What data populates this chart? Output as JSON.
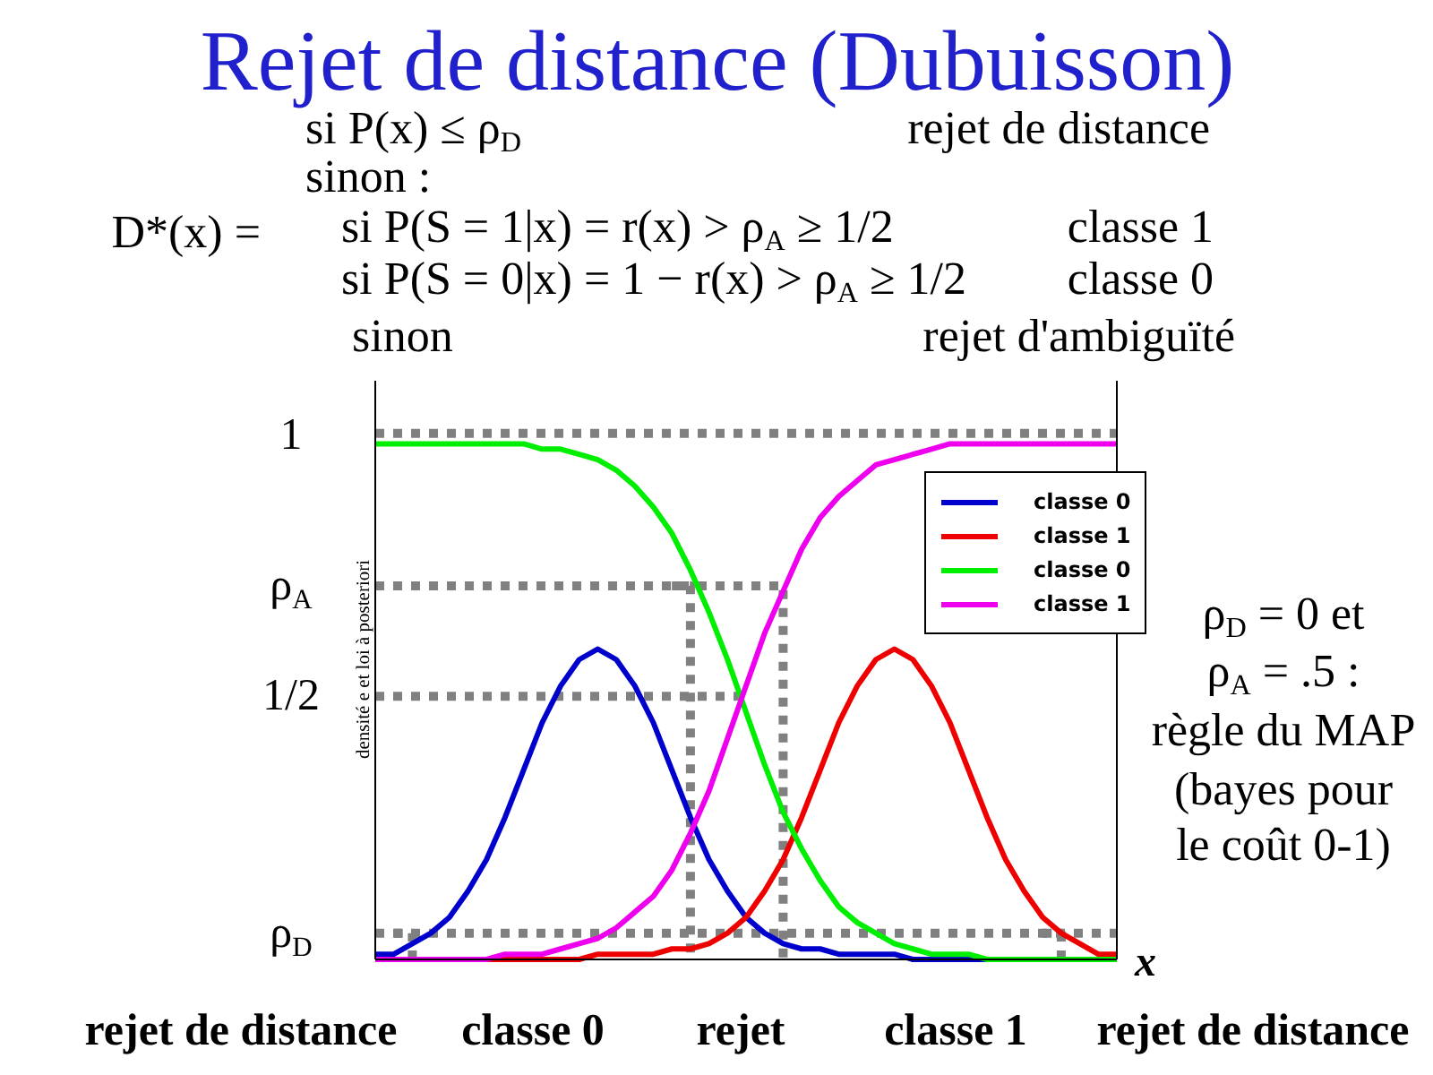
{
  "chart_data": {
    "type": "line",
    "title": "Rejet de distance (Dubuisson)",
    "xlabel": "x",
    "ylabel": "densité e et loi à posteriori",
    "categories": [
      null,
      null,
      null,
      null,
      null,
      null,
      null,
      null,
      null,
      null,
      null,
      null,
      null,
      null,
      null,
      null,
      null,
      null,
      null,
      null,
      null,
      null,
      null,
      null,
      null,
      null,
      null,
      null,
      null,
      null,
      null,
      null,
      null,
      null,
      null,
      null,
      null,
      null,
      null,
      null,
      null
    ],
    "ref_lines": [
      {
        "axis": "y",
        "value": 1,
        "color": "#808080",
        "line_style": "dotted"
      },
      {
        "axis": "y",
        "value": 0.05,
        "color": "#808080",
        "line_style": "dotted"
      }
    ],
    "series": [
      {
        "type": "step",
        "color": "#808080",
        "line_style": "dotted",
        "values": [
          0.71,
          0.71,
          0.71,
          0.71,
          0.71,
          0.71,
          0.71,
          0.71,
          0.71,
          0.71,
          0.71,
          0.71,
          0.71,
          0.71,
          0.71,
          0.71,
          0.71,
          0.71,
          0.71,
          0.71,
          0.71,
          0.71,
          0,
          null,
          null,
          null,
          null,
          null,
          null,
          null,
          null,
          null,
          null,
          null,
          null,
          null,
          null,
          null,
          null,
          null,
          null
        ]
      },
      {
        "type": "step",
        "color": "#808080",
        "line_style": "dotted",
        "values": [
          null,
          null,
          null,
          null,
          null,
          null,
          null,
          null,
          null,
          null,
          null,
          null,
          null,
          null,
          null,
          null,
          0.71,
          0,
          null,
          null,
          null,
          null,
          null,
          null,
          null,
          null,
          null,
          null,
          null,
          null,
          null,
          null,
          null,
          null,
          null,
          null,
          null,
          null,
          null,
          null,
          null
        ]
      },
      {
        "type": "line",
        "color": "#808080",
        "line_style": "dotted",
        "values": [
          0.5,
          0.5,
          0.5,
          0.5,
          0.5,
          0.5,
          0.5,
          0.5,
          0.5,
          0.5,
          0.5,
          0.5,
          0.5,
          0.5,
          0.5,
          0.5,
          0.5,
          0.5,
          0.5,
          0.5,
          0.5,
          null,
          null,
          null,
          null,
          null,
          null,
          null,
          null,
          null,
          null,
          null,
          null,
          null,
          null,
          null,
          null,
          null,
          null,
          null,
          null
        ]
      },
      {
        "type": "step",
        "color": "#808080",
        "line_style": "dotted",
        "values": [
          null,
          0.05,
          0,
          null,
          null,
          null,
          null,
          null,
          null,
          null,
          null,
          null,
          null,
          null,
          null,
          null,
          null,
          null,
          null,
          null,
          null,
          null,
          null,
          null,
          null,
          null,
          null,
          null,
          null,
          null,
          null,
          null,
          null,
          null,
          null,
          null,
          null,
          null,
          null,
          null,
          null
        ]
      },
      {
        "type": "step",
        "color": "#808080",
        "line_style": "dotted",
        "values": [
          null,
          null,
          null,
          null,
          null,
          null,
          null,
          null,
          null,
          null,
          null,
          null,
          null,
          null,
          null,
          null,
          null,
          null,
          null,
          null,
          null,
          null,
          null,
          null,
          null,
          null,
          null,
          null,
          null,
          null,
          null,
          null,
          null,
          null,
          null,
          null,
          0.05,
          0,
          null,
          null,
          null
        ]
      },
      {
        "name": "classe 0",
        "color": "#0000cc",
        "values": [
          0.01,
          0.01,
          0.03,
          0.05,
          0.08,
          0.13,
          0.19,
          0.27,
          0.36,
          0.45,
          0.52,
          0.57,
          0.59,
          0.57,
          0.52,
          0.45,
          0.36,
          0.27,
          0.19,
          0.13,
          0.08,
          0.05,
          0.03,
          0.02,
          0.02,
          0.01,
          0.01,
          0.01,
          0.01,
          0,
          0,
          0,
          0,
          0,
          0,
          null,
          null,
          null,
          null,
          null,
          null
        ]
      },
      {
        "name": "classe 1",
        "color": "#ee0000",
        "values": [
          null,
          null,
          null,
          null,
          null,
          0,
          0,
          0,
          0,
          0,
          0,
          0,
          0.01,
          0.01,
          0.01,
          0.01,
          0.02,
          0.02,
          0.03,
          0.05,
          0.08,
          0.13,
          0.19,
          0.27,
          0.36,
          0.45,
          0.52,
          0.57,
          0.59,
          0.57,
          0.52,
          0.45,
          0.36,
          0.27,
          0.19,
          0.13,
          0.08,
          0.05,
          0.03,
          0.01,
          0.01
        ]
      },
      {
        "name": "classe 0",
        "color": "#00ee00",
        "values": [
          0.98,
          0.98,
          0.98,
          0.98,
          0.98,
          0.98,
          0.98,
          0.98,
          0.98,
          0.97,
          0.97,
          0.96,
          0.95,
          0.93,
          0.9,
          0.86,
          0.81,
          0.74,
          0.66,
          0.57,
          0.47,
          0.37,
          0.28,
          0.21,
          0.15,
          0.1,
          0.07,
          0.05,
          0.03,
          0.02,
          0.01,
          0.01,
          0.01,
          0,
          0,
          0,
          0,
          0,
          0,
          0,
          0
        ]
      },
      {
        "name": "classe 1",
        "color": "#ee00ee",
        "values": [
          0,
          0,
          0,
          0,
          0,
          0,
          0,
          0.01,
          0.01,
          0.01,
          0.02,
          0.03,
          0.04,
          0.06,
          0.09,
          0.12,
          0.17,
          0.24,
          0.32,
          0.42,
          0.52,
          0.62,
          0.7,
          0.78,
          0.84,
          0.88,
          0.91,
          0.94,
          0.95,
          0.96,
          0.97,
          0.98,
          0.98,
          0.98,
          0.98,
          0.98,
          0.98,
          0.98,
          0.98,
          0.98,
          0.98
        ]
      }
    ],
    "ylim": [
      0,
      1.1
    ],
    "yticks": [
      {
        "value": 0.05,
        "label": "ρ$_{D}$"
      },
      {
        "value": 0.5,
        "label": "1/2"
      },
      {
        "value": 0.71,
        "label": "ρ$_{A}$"
      },
      1
    ],
    "tick_labels": "y",
    "legend": "top right",
    "line_style": "solid",
    "annotations": [
      "D*(x) =",
      "si P(x) ≤ ρ$_{D}$",
      "rejet de distance",
      "sinon :",
      "si P(S = 1|x) = r(x) > ρ$_{A}$ ≥ 1/2",
      "classe 1",
      "si P(S = 0|x) = 1 − r(x) > ρ$_{A}$ ≥ 1/2",
      "classe 0",
      "sinon",
      "rejet d'ambiguïté",
      "ρ$_{D}$ = 0 et",
      "ρ$_{A}$ = .5 :",
      "règle du MAP",
      "(bayes pour",
      "le coût 0-1)",
      "rejet de distance",
      "classe 0",
      "rejet",
      "classe 1",
      "rejet de distance"
    ]
  }
}
